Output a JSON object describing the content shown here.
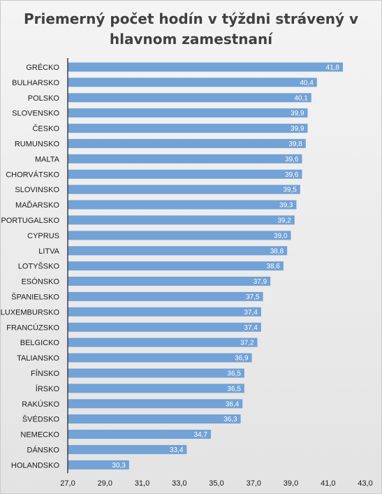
{
  "chart_data": {
    "type": "bar",
    "orientation": "horizontal",
    "title": "Priemerný počet hodín v týždni strávený v hlavnom zamestnaní",
    "categories": [
      "GRÉCKO",
      "BULHARSKO",
      "POLSKO",
      "SLOVENSKO",
      "ČESKO",
      "RUMUNSKO",
      "MALTA",
      "CHORVÁTSKO",
      "SLOVINSKO",
      "MAĎARSKO",
      "PORTUGALSKO",
      "CYPRUS",
      "LITVA",
      "LOTYŠSKO",
      "ESÓNSKO",
      "ŠPANIELSKO",
      "LUXEMBURSKO",
      "FRANCÚZSKO",
      "BELGICKO",
      "TALIANSKO",
      "FÍNSKO",
      "ÍRSKO",
      "RAKÚSKO",
      "ŠVÉDSKO",
      "NEMECKO",
      "DÁNSKO",
      "HOLANDSKO"
    ],
    "values": [
      41.8,
      40.4,
      40.1,
      39.9,
      39.9,
      39.8,
      39.6,
      39.6,
      39.5,
      39.3,
      39.2,
      39.0,
      38.8,
      38.6,
      37.9,
      37.5,
      37.4,
      37.4,
      37.2,
      36.9,
      36.5,
      36.5,
      36.4,
      36.3,
      34.7,
      33.4,
      30.3
    ],
    "data_labels": [
      "41,8",
      "40,4",
      "40,1",
      "39,9",
      "39,9",
      "39,8",
      "39,6",
      "39,6",
      "39,5",
      "39,3",
      "39,2",
      "39,0",
      "38,8",
      "38,6",
      "37,9",
      "37,5",
      "37,4",
      "37,4",
      "37,2",
      "36,9",
      "36,5",
      "36,5",
      "36,4",
      "36,3",
      "34,7",
      "33,4",
      "30,3"
    ],
    "xlim": [
      27,
      43
    ],
    "xticks": [
      "27,0",
      "29,0",
      "31,0",
      "33,0",
      "35,0",
      "37,0",
      "39,0",
      "41,0",
      "43,0"
    ],
    "grid": false,
    "bar_color": "#72a2d6"
  }
}
